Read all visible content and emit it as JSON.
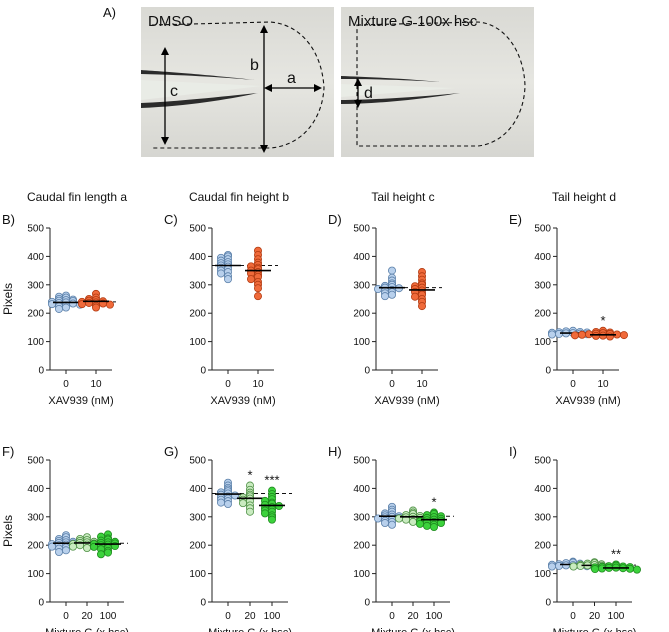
{
  "figure": {
    "panel_A": {
      "letter": "A)",
      "left_title": "DMSO",
      "right_title": "Mixture G 100x hsc",
      "measure_labels": [
        "a",
        "b",
        "c",
        "d"
      ]
    }
  },
  "colors": {
    "blue": "#b8d0ec",
    "blue_edge": "#5a7fa8",
    "orange": "#f06a3a",
    "orange_edge": "#b23b12",
    "light_green": "#c9ebc0",
    "light_green_edge": "#4d8f44",
    "green": "#3cd23c",
    "green_edge": "#1f8a1f"
  },
  "chart_data": [
    {
      "id": "B",
      "letter": "B)",
      "type": "scatter",
      "title": "Caudal fin length a",
      "ylabel": "Pixels",
      "xlabel": "XAV939 (nM)",
      "ylim": [
        0,
        500
      ],
      "yticks": [
        0,
        100,
        200,
        300,
        400,
        500
      ],
      "categories": [
        "0",
        "10"
      ],
      "reference_line": 240,
      "series": [
        {
          "color": "blue",
          "values": [
            262,
            258,
            255,
            250,
            248,
            246,
            244,
            243,
            240,
            238,
            236,
            234,
            232,
            230,
            227,
            224,
            220,
            215
          ]
        },
        {
          "color": "orange",
          "values": [
            268,
            255,
            250,
            246,
            244,
            242,
            240,
            238,
            236,
            234,
            232,
            230,
            226,
            220
          ]
        }
      ],
      "means": [
        238,
        242
      ],
      "annotations": [
        "",
        ""
      ]
    },
    {
      "id": "C",
      "letter": "C)",
      "type": "scatter",
      "title": "Caudal fin height b",
      "ylabel": "",
      "xlabel": "XAV939 (nM)",
      "ylim": [
        0,
        500
      ],
      "yticks": [
        0,
        100,
        200,
        300,
        400,
        500
      ],
      "categories": [
        "0",
        "10"
      ],
      "reference_line": 368,
      "series": [
        {
          "color": "blue",
          "values": [
            405,
            400,
            395,
            390,
            385,
            380,
            376,
            372,
            368,
            364,
            360,
            355,
            350,
            345,
            340,
            330,
            320
          ]
        },
        {
          "color": "orange",
          "values": [
            420,
            405,
            390,
            378,
            370,
            365,
            360,
            355,
            350,
            345,
            340,
            335,
            328,
            320,
            310,
            300,
            288,
            260
          ]
        }
      ],
      "means": [
        368,
        350
      ],
      "annotations": [
        "",
        ""
      ]
    },
    {
      "id": "D",
      "letter": "D)",
      "type": "scatter",
      "title": "Tail height c",
      "ylabel": "",
      "xlabel": "XAV939 (nM)",
      "ylim": [
        0,
        500
      ],
      "yticks": [
        0,
        100,
        200,
        300,
        400,
        500
      ],
      "categories": [
        "0",
        "10"
      ],
      "reference_line": 290,
      "series": [
        {
          "color": "blue",
          "values": [
            350,
            325,
            315,
            305,
            300,
            296,
            292,
            290,
            288,
            285,
            282,
            278,
            274,
            270,
            265,
            260
          ]
        },
        {
          "color": "orange",
          "values": [
            345,
            330,
            318,
            305,
            300,
            295,
            290,
            285,
            280,
            275,
            270,
            265,
            258,
            250,
            240,
            225
          ]
        }
      ],
      "means": [
        290,
        282
      ],
      "annotations": [
        "",
        ""
      ]
    },
    {
      "id": "E",
      "letter": "E)",
      "type": "scatter",
      "title": "Tail height d",
      "ylabel": "",
      "xlabel": "XAV939 (nM)",
      "ylim": [
        0,
        500
      ],
      "yticks": [
        0,
        100,
        200,
        300,
        400,
        500
      ],
      "categories": [
        "0",
        "10"
      ],
      "reference_line": 130,
      "series": [
        {
          "color": "blue",
          "values": [
            138,
            136,
            134,
            133,
            132,
            131,
            130,
            129,
            128,
            127,
            126,
            125
          ]
        },
        {
          "color": "orange",
          "values": [
            138,
            134,
            132,
            130,
            128,
            127,
            126,
            125,
            124,
            123,
            122,
            121,
            120,
            118
          ]
        }
      ],
      "means": [
        130,
        124
      ],
      "annotations": [
        "",
        "*"
      ]
    },
    {
      "id": "F",
      "letter": "F)",
      "type": "scatter",
      "title": "",
      "ylabel": "Pixels",
      "xlabel": "Mixture G (x hsc)",
      "ylim": [
        0,
        500
      ],
      "yticks": [
        0,
        100,
        200,
        300,
        400,
        500
      ],
      "categories": [
        "0",
        "20",
        "100"
      ],
      "reference_line": 207,
      "series": [
        {
          "color": "blue",
          "values": [
            235,
            228,
            222,
            218,
            215,
            212,
            210,
            208,
            206,
            204,
            202,
            200,
            198,
            195,
            192,
            188,
            182,
            176
          ]
        },
        {
          "color": "light_green",
          "values": [
            228,
            222,
            218,
            215,
            212,
            210,
            208,
            206,
            204,
            202,
            200,
            198,
            195,
            190
          ]
        },
        {
          "color": "green",
          "values": [
            238,
            230,
            224,
            220,
            216,
            212,
            210,
            208,
            206,
            204,
            202,
            200,
            197,
            194,
            190,
            186,
            180,
            174,
            168
          ]
        }
      ],
      "means": [
        207,
        208,
        204
      ],
      "annotations": [
        "",
        "",
        ""
      ]
    },
    {
      "id": "G",
      "letter": "G)",
      "type": "scatter",
      "title": "",
      "ylabel": "",
      "xlabel": "Mixture G (x hsc)",
      "ylim": [
        0,
        500
      ],
      "yticks": [
        0,
        100,
        200,
        300,
        400,
        500
      ],
      "categories": [
        "0",
        "20",
        "100"
      ],
      "reference_line": 382,
      "series": [
        {
          "color": "blue",
          "values": [
            420,
            410,
            402,
            396,
            390,
            386,
            382,
            378,
            375,
            372,
            368,
            364,
            360,
            355,
            350,
            345
          ]
        },
        {
          "color": "light_green",
          "values": [
            410,
            395,
            385,
            378,
            372,
            368,
            364,
            360,
            355,
            348,
            340,
            330,
            318
          ]
        },
        {
          "color": "green",
          "values": [
            392,
            380,
            370,
            362,
            356,
            350,
            346,
            342,
            338,
            334,
            330,
            326,
            322,
            318,
            312,
            305,
            298,
            290
          ]
        }
      ],
      "means": [
        380,
        365,
        340
      ],
      "annotations": [
        "",
        "*",
        "***"
      ]
    },
    {
      "id": "H",
      "letter": "H)",
      "type": "scatter",
      "title": "",
      "ylabel": "",
      "xlabel": "Mixture G (x hsc)",
      "ylim": [
        0,
        500
      ],
      "yticks": [
        0,
        100,
        200,
        300,
        400,
        500
      ],
      "categories": [
        "0",
        "20",
        "100"
      ],
      "reference_line": 302,
      "series": [
        {
          "color": "blue",
          "values": [
            335,
            325,
            318,
            312,
            308,
            305,
            302,
            300,
            298,
            296,
            294,
            290,
            286,
            282,
            278,
            272
          ]
        },
        {
          "color": "light_green",
          "values": [
            322,
            315,
            310,
            306,
            303,
            300,
            298,
            296,
            294,
            292,
            290,
            286,
            282
          ]
        },
        {
          "color": "green",
          "values": [
            315,
            310,
            306,
            302,
            299,
            296,
            293,
            290,
            288,
            286,
            284,
            282,
            280,
            278,
            275,
            272,
            268,
            264
          ]
        }
      ],
      "means": [
        302,
        300,
        290
      ],
      "annotations": [
        "",
        "",
        "*"
      ]
    },
    {
      "id": "I",
      "letter": "I)",
      "type": "scatter",
      "title": "",
      "ylabel": "",
      "xlabel": "Mixture G (x hsc)",
      "ylim": [
        0,
        500
      ],
      "yticks": [
        0,
        100,
        200,
        300,
        400,
        500
      ],
      "categories": [
        "0",
        "20",
        "100"
      ],
      "reference_line": 130,
      "series": [
        {
          "color": "blue",
          "values": [
            142,
            139,
            137,
            135,
            133,
            132,
            131,
            130,
            129,
            128,
            127,
            126,
            125,
            123
          ]
        },
        {
          "color": "light_green",
          "values": [
            140,
            137,
            135,
            133,
            131,
            130,
            129,
            128,
            127,
            126,
            125,
            123,
            121
          ]
        },
        {
          "color": "green",
          "values": [
            132,
            128,
            126,
            125,
            124,
            123,
            122,
            121,
            120,
            119,
            118,
            117,
            116,
            114
          ]
        }
      ],
      "means": [
        132,
        129,
        120
      ],
      "annotations": [
        "",
        "",
        "**"
      ]
    }
  ]
}
